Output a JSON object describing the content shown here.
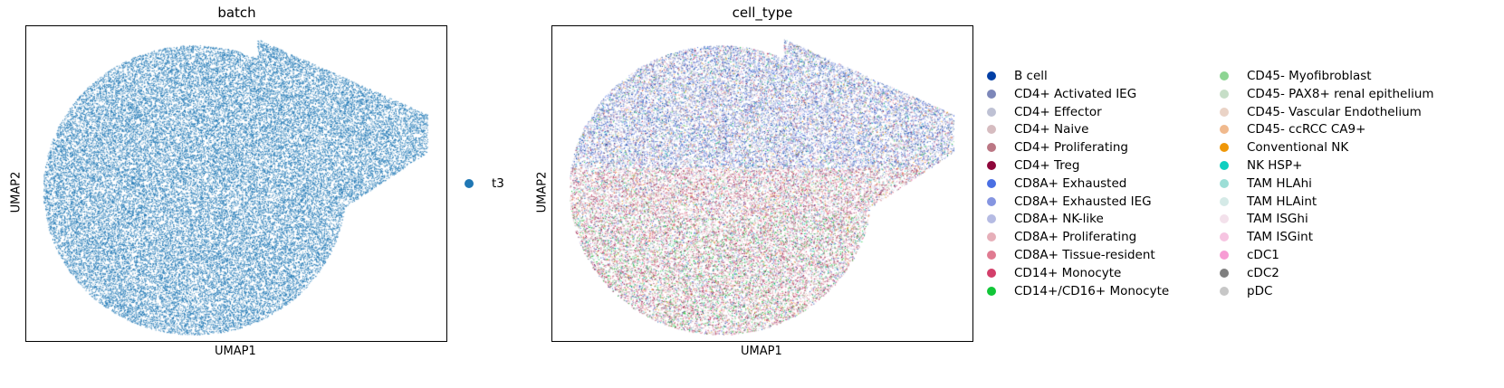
{
  "chart_data": [
    {
      "type": "scatter",
      "title": "batch",
      "xlabel": "UMAP1",
      "ylabel": "UMAP2",
      "grid": false,
      "legend": {
        "placement": "right",
        "columns": 1
      },
      "series": [
        {
          "name": "t3",
          "color": "#1f77b4"
        }
      ]
    },
    {
      "type": "scatter",
      "title": "cell_type",
      "xlabel": "UMAP1",
      "ylabel": "UMAP2",
      "grid": false,
      "legend": {
        "placement": "right",
        "columns": 2
      },
      "series": [
        {
          "name": "B cell",
          "color": "#023fa5"
        },
        {
          "name": "CD4+ Activated IEG",
          "color": "#7d87b9"
        },
        {
          "name": "CD4+ Effector",
          "color": "#bec1d4"
        },
        {
          "name": "CD4+ Naive",
          "color": "#d6bcc0"
        },
        {
          "name": "CD4+ Proliferating",
          "color": "#bb7784"
        },
        {
          "name": "CD4+ Treg",
          "color": "#8e063b"
        },
        {
          "name": "CD8A+ Exhausted",
          "color": "#4a6fe3"
        },
        {
          "name": "CD8A+ Exhausted IEG",
          "color": "#8595e1"
        },
        {
          "name": "CD8A+ NK-like",
          "color": "#b5bbe3"
        },
        {
          "name": "CD8A+ Proliferating",
          "color": "#e6afb9"
        },
        {
          "name": "CD8A+ Tissue-resident",
          "color": "#e07b91"
        },
        {
          "name": "CD14+ Monocyte",
          "color": "#d33f6a"
        },
        {
          "name": "CD14+/CD16+ Monocyte",
          "color": "#11c638"
        },
        {
          "name": "CD45- Myofibroblast",
          "color": "#8dd593"
        },
        {
          "name": "CD45- PAX8+ renal epithelium",
          "color": "#c6dec7"
        },
        {
          "name": "CD45- Vascular Endothelium",
          "color": "#ead3c6"
        },
        {
          "name": "CD45- ccRCC CA9+",
          "color": "#f0b98d"
        },
        {
          "name": "Conventional NK",
          "color": "#ef9708"
        },
        {
          "name": "NK HSP+",
          "color": "#0fcfc0"
        },
        {
          "name": "TAM HLAhi",
          "color": "#9cded6"
        },
        {
          "name": "TAM HLAint",
          "color": "#d5eae7"
        },
        {
          "name": "TAM ISGhi",
          "color": "#f3e1eb"
        },
        {
          "name": "TAM ISGint",
          "color": "#f6c4e1"
        },
        {
          "name": "cDC1",
          "color": "#f79cd4"
        },
        {
          "name": "cDC2",
          "color": "#7f7f7f"
        },
        {
          "name": "pDC",
          "color": "#c7c7c7"
        }
      ]
    }
  ]
}
